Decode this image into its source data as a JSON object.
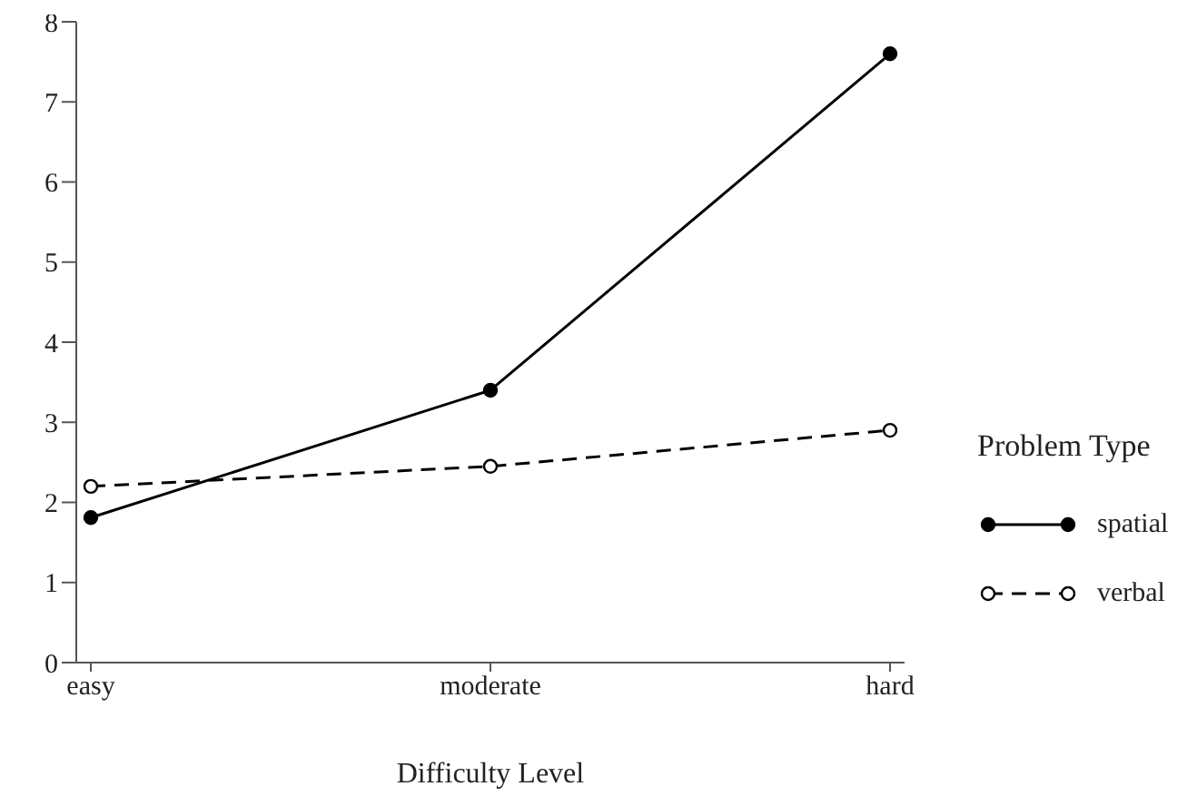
{
  "chart_data": {
    "type": "line",
    "xlabel": "Difficulty Level",
    "legend_title": "Problem Type",
    "categories": [
      "easy",
      "moderate",
      "hard"
    ],
    "series": [
      {
        "name": "spatial",
        "color": "#000000",
        "line_style": "solid",
        "values": [
          1.81,
          3.4,
          7.6
        ]
      },
      {
        "name": "verbal",
        "color": "#000000",
        "line_style": "dashed",
        "values": [
          2.2,
          2.45,
          2.9
        ]
      }
    ],
    "ylim": [
      0,
      8
    ],
    "yticks": [
      0,
      1,
      2,
      3,
      4,
      5,
      6,
      7,
      8
    ],
    "marker": "circle",
    "legend": "right",
    "grid": false
  }
}
